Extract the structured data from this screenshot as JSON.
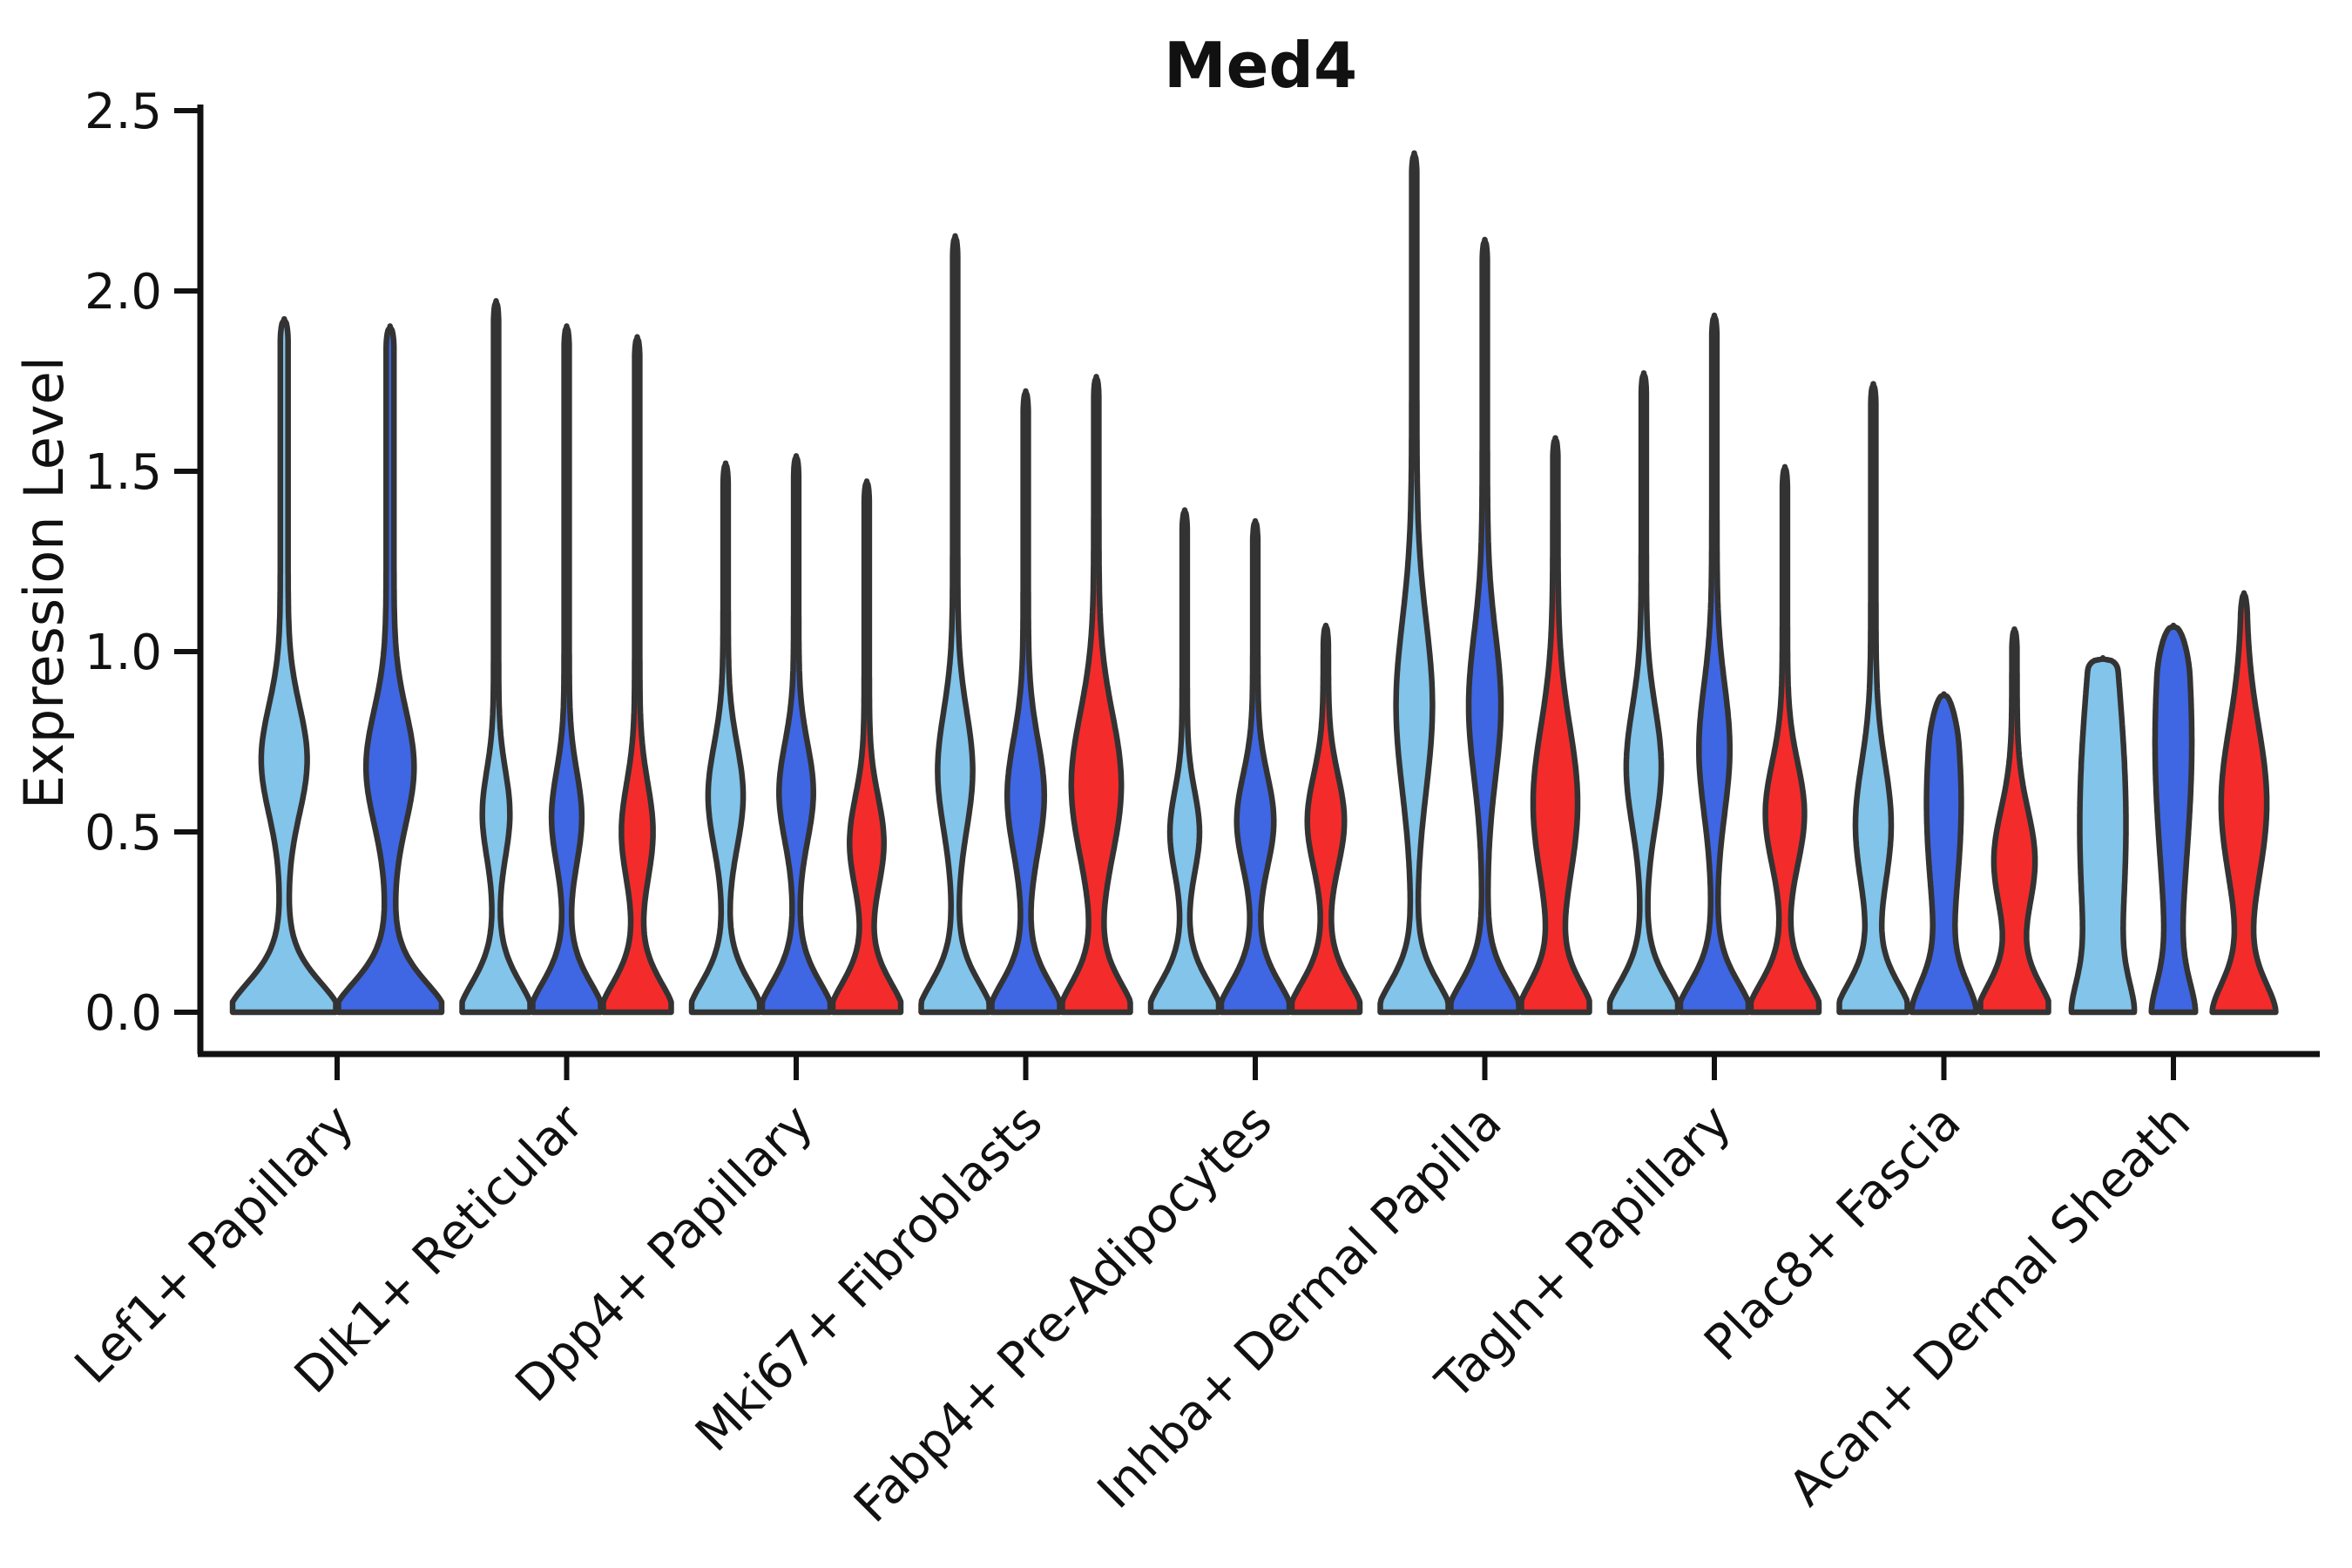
{
  "title": "Med4",
  "y_axis": {
    "label": "Expression Level",
    "tick_labels": [
      "0.0",
      "0.5",
      "1.0",
      "1.5",
      "2.0",
      "2.5"
    ],
    "tick_values": [
      0.0,
      0.5,
      1.0,
      1.5,
      2.0,
      2.5
    ]
  },
  "palette": {
    "light_blue": "#82C4EA",
    "dark_blue": "#3F66E3",
    "red": "#F42B2B",
    "violin_outline": "#333333",
    "axis_color": "#111111"
  },
  "chart_data": {
    "type": "violin",
    "title": "Med4",
    "xlabel": "",
    "ylabel": "Expression Level",
    "ylim": [
      0,
      2.5
    ],
    "grid": false,
    "legend": "none",
    "categories": [
      "Lef1+ Papillary",
      "Dlk1+ Reticular",
      "Dpp4+ Papillary",
      "Mki67+ Fibroblasts",
      "Fabp4+ Pre-Adipocytes",
      "Inhba+ Dermal Papilla",
      "Tagln+ Papillary",
      "Plac8+ Fascia",
      "Acan+ Dermal Sheath"
    ],
    "series_note": "each category holds 2-3 violins colored light_blue / dark_blue / red; all violins are truncated at 0 with a wide base, a narrow waist, a mid bulge and a thin spike to the max expression value",
    "groups": [
      {
        "category": "Lef1+ Papillary",
        "violins": [
          {
            "color": "light_blue",
            "max": 1.92,
            "bulge_center": 0.7,
            "bulge_sigma": 0.21,
            "bulge_width": 0.37,
            "base": 1.0,
            "tail": 0.075,
            "cap": "spike"
          },
          {
            "color": "dark_blue",
            "max": 1.9,
            "bulge_center": 0.68,
            "bulge_sigma": 0.22,
            "bulge_width": 0.39,
            "base": 1.0,
            "tail": 0.075,
            "cap": "spike"
          }
        ]
      },
      {
        "category": "Dlk1+ Reticular",
        "violins": [
          {
            "color": "light_blue",
            "max": 1.97,
            "bulge_center": 0.55,
            "bulge_sigma": 0.17,
            "bulge_width": 0.33,
            "base": 1.0,
            "tail": 0.075,
            "cap": "spike"
          },
          {
            "color": "dark_blue",
            "max": 1.9,
            "bulge_center": 0.54,
            "bulge_sigma": 0.18,
            "bulge_width": 0.37,
            "base": 1.0,
            "tail": 0.075,
            "cap": "spike"
          },
          {
            "color": "red",
            "max": 1.87,
            "bulge_center": 0.5,
            "bulge_sigma": 0.19,
            "bulge_width": 0.39,
            "base": 1.0,
            "tail": 0.075,
            "cap": "spike"
          }
        ]
      },
      {
        "category": "Dpp4+ Papillary",
        "violins": [
          {
            "color": "light_blue",
            "max": 1.52,
            "bulge_center": 0.6,
            "bulge_sigma": 0.2,
            "bulge_width": 0.44,
            "base": 1.0,
            "tail": 0.075,
            "cap": "spike"
          },
          {
            "color": "dark_blue",
            "max": 1.54,
            "bulge_center": 0.61,
            "bulge_sigma": 0.19,
            "bulge_width": 0.43,
            "base": 1.0,
            "tail": 0.075,
            "cap": "spike"
          },
          {
            "color": "red",
            "max": 1.47,
            "bulge_center": 0.47,
            "bulge_sigma": 0.18,
            "bulge_width": 0.43,
            "base": 1.0,
            "tail": 0.075,
            "cap": "spike"
          }
        ]
      },
      {
        "category": "Mki67+ Fibroblasts",
        "violins": [
          {
            "color": "light_blue",
            "max": 2.15,
            "bulge_center": 0.67,
            "bulge_sigma": 0.23,
            "bulge_width": 0.44,
            "base": 1.0,
            "tail": 0.075,
            "cap": "spike"
          },
          {
            "color": "dark_blue",
            "max": 1.72,
            "bulge_center": 0.6,
            "bulge_sigma": 0.22,
            "bulge_width": 0.47,
            "base": 1.0,
            "tail": 0.075,
            "cap": "spike"
          },
          {
            "color": "red",
            "max": 1.76,
            "bulge_center": 0.63,
            "bulge_sigma": 0.28,
            "bulge_width": 0.66,
            "base": 1.0,
            "tail": 0.075,
            "cap": "spike"
          }
        ]
      },
      {
        "category": "Fabp4+ Pre-Adipocytes",
        "violins": [
          {
            "color": "light_blue",
            "max": 1.39,
            "bulge_center": 0.5,
            "bulge_sigma": 0.16,
            "bulge_width": 0.36,
            "base": 1.0,
            "tail": 0.075,
            "cap": "spike"
          },
          {
            "color": "dark_blue",
            "max": 1.36,
            "bulge_center": 0.53,
            "bulge_sigma": 0.18,
            "bulge_width": 0.47,
            "base": 1.0,
            "tail": 0.075,
            "cap": "spike"
          },
          {
            "color": "red",
            "max": 1.07,
            "bulge_center": 0.53,
            "bulge_sigma": 0.18,
            "bulge_width": 0.47,
            "base": 1.0,
            "tail": 0.075,
            "cap": "spike"
          }
        ]
      },
      {
        "category": "Inhba+ Dermal Papilla",
        "violins": [
          {
            "color": "light_blue",
            "max": 2.38,
            "bulge_center": 0.85,
            "bulge_sigma": 0.33,
            "bulge_width": 0.46,
            "base": 1.0,
            "tail": 0.075,
            "cap": "spike"
          },
          {
            "color": "dark_blue",
            "max": 2.14,
            "bulge_center": 0.85,
            "bulge_sigma": 0.28,
            "bulge_width": 0.4,
            "base": 1.0,
            "tail": 0.075,
            "cap": "spike"
          },
          {
            "color": "red",
            "max": 1.59,
            "bulge_center": 0.58,
            "bulge_sigma": 0.3,
            "bulge_width": 0.58,
            "base": 1.0,
            "tail": 0.075,
            "cap": "spike"
          }
        ]
      },
      {
        "category": "Tagln+ Papillary",
        "violins": [
          {
            "color": "light_blue",
            "max": 1.77,
            "bulge_center": 0.68,
            "bulge_sigma": 0.23,
            "bulge_width": 0.44,
            "base": 1.0,
            "tail": 0.075,
            "cap": "spike"
          },
          {
            "color": "dark_blue",
            "max": 1.93,
            "bulge_center": 0.73,
            "bulge_sigma": 0.25,
            "bulge_width": 0.38,
            "base": 1.0,
            "tail": 0.075,
            "cap": "spike"
          },
          {
            "color": "red",
            "max": 1.51,
            "bulge_center": 0.55,
            "bulge_sigma": 0.2,
            "bulge_width": 0.5,
            "base": 1.0,
            "tail": 0.075,
            "cap": "spike"
          }
        ]
      },
      {
        "category": "Plac8+ Fascia",
        "violins": [
          {
            "color": "light_blue",
            "max": 1.74,
            "bulge_center": 0.52,
            "bulge_sigma": 0.24,
            "bulge_width": 0.45,
            "base": 1.0,
            "tail": 0.075,
            "cap": "spike"
          },
          {
            "color": "dark_blue",
            "max": 0.88,
            "bulge_center": 0.58,
            "bulge_sigma": 0.42,
            "bulge_width": 0.48,
            "base": 0.85,
            "tail": 0.03,
            "cap": "round"
          },
          {
            "color": "red",
            "max": 1.06,
            "bulge_center": 0.42,
            "bulge_sigma": 0.2,
            "bulge_width": 0.53,
            "base": 1.0,
            "tail": 0.075,
            "cap": "spike"
          }
        ]
      },
      {
        "category": "Acan+ Dermal Sheath",
        "violins": [
          {
            "color": "light_blue",
            "max": 0.98,
            "bulge_center": 0.52,
            "bulge_sigma": 0.6,
            "bulge_width": 0.58,
            "base": 0.55,
            "tail": 0.1,
            "cap": "flat"
          },
          {
            "color": "dark_blue",
            "max": 1.07,
            "bulge_center": 0.75,
            "bulge_sigma": 0.5,
            "bulge_width": 0.44,
            "base": 0.5,
            "tail": 0.1,
            "cap": "round"
          },
          {
            "color": "red",
            "max": 1.16,
            "bulge_center": 0.58,
            "bulge_sigma": 0.3,
            "bulge_width": 0.6,
            "base": 0.85,
            "tail": 0.07,
            "cap": "spike"
          }
        ]
      }
    ]
  }
}
